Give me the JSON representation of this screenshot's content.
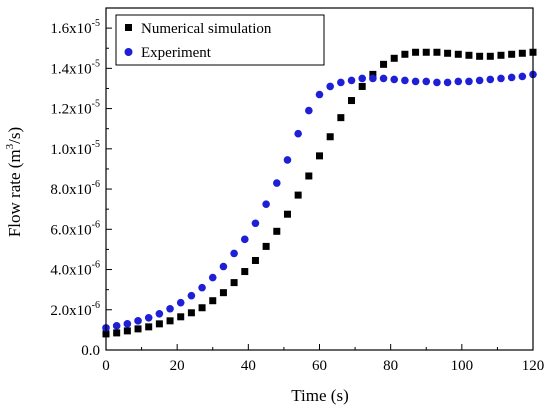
{
  "chart_data": {
    "type": "scatter",
    "xlabel": "Time (s)",
    "ylabel_main": "Flow rate (m",
    "ylabel_sup": "3",
    "ylabel_tail": "/s)",
    "xlim": [
      0,
      120
    ],
    "ylim": [
      0,
      1.7e-05
    ],
    "x_ticks": [
      {
        "value": 0,
        "label": "0"
      },
      {
        "value": 20,
        "label": "20"
      },
      {
        "value": 40,
        "label": "40"
      },
      {
        "value": 60,
        "label": "60"
      },
      {
        "value": 80,
        "label": "80"
      },
      {
        "value": 100,
        "label": "100"
      },
      {
        "value": 120,
        "label": "120"
      }
    ],
    "y_ticks": [
      {
        "value": 0,
        "mant": "0.0",
        "exp": ""
      },
      {
        "value": 2e-06,
        "mant": "2.0x10",
        "exp": "-6"
      },
      {
        "value": 4e-06,
        "mant": "4.0x10",
        "exp": "-6"
      },
      {
        "value": 6e-06,
        "mant": "6.0x10",
        "exp": "-6"
      },
      {
        "value": 8e-06,
        "mant": "8.0x10",
        "exp": "-6"
      },
      {
        "value": 1e-05,
        "mant": "1.0x10",
        "exp": "-5"
      },
      {
        "value": 1.2e-05,
        "mant": "1.2x10",
        "exp": "-5"
      },
      {
        "value": 1.4e-05,
        "mant": "1.4x10",
        "exp": "-5"
      },
      {
        "value": 1.6e-05,
        "mant": "1.6x10",
        "exp": "-5"
      }
    ],
    "legend_position": "top-left",
    "series": [
      {
        "name": "Numerical simulation",
        "marker": "square",
        "color": "#000000",
        "x": [
          0,
          3,
          6,
          9,
          12,
          15,
          18,
          21,
          24,
          27,
          30,
          33,
          36,
          39,
          42,
          45,
          48,
          51,
          54,
          57,
          60,
          63,
          66,
          69,
          72,
          75,
          78,
          81,
          84,
          87,
          90,
          93,
          96,
          99,
          102,
          105,
          108,
          111,
          114,
          117,
          120
        ],
        "y": [
          8e-07,
          8.5e-07,
          9.5e-07,
          1.05e-06,
          1.15e-06,
          1.3e-06,
          1.45e-06,
          1.65e-06,
          1.85e-06,
          2.1e-06,
          2.45e-06,
          2.85e-06,
          3.35e-06,
          3.9e-06,
          4.45e-06,
          5.15e-06,
          5.9e-06,
          6.75e-06,
          7.7e-06,
          8.65e-06,
          9.65e-06,
          1.06e-05,
          1.155e-05,
          1.24e-05,
          1.31e-05,
          1.37e-05,
          1.42e-05,
          1.45e-05,
          1.47e-05,
          1.48e-05,
          1.48e-05,
          1.48e-05,
          1.475e-05,
          1.47e-05,
          1.465e-05,
          1.46e-05,
          1.46e-05,
          1.465e-05,
          1.47e-05,
          1.475e-05,
          1.48e-05
        ]
      },
      {
        "name": "Experiment",
        "marker": "circle",
        "color": "#1f1fd6",
        "x": [
          0,
          3,
          6,
          9,
          12,
          15,
          18,
          21,
          24,
          27,
          30,
          33,
          36,
          39,
          42,
          45,
          48,
          51,
          54,
          57,
          60,
          63,
          66,
          69,
          72,
          75,
          78,
          81,
          84,
          87,
          90,
          93,
          96,
          99,
          102,
          105,
          108,
          111,
          114,
          117,
          120
        ],
        "y": [
          1.1e-06,
          1.2e-06,
          1.3e-06,
          1.45e-06,
          1.6e-06,
          1.8e-06,
          2.05e-06,
          2.35e-06,
          2.7e-06,
          3.1e-06,
          3.6e-06,
          4.15e-06,
          4.8e-06,
          5.5e-06,
          6.3e-06,
          7.25e-06,
          8.3e-06,
          9.45e-06,
          1.075e-05,
          1.19e-05,
          1.27e-05,
          1.31e-05,
          1.33e-05,
          1.34e-05,
          1.35e-05,
          1.35e-05,
          1.35e-05,
          1.345e-05,
          1.34e-05,
          1.335e-05,
          1.335e-05,
          1.33e-05,
          1.33e-05,
          1.335e-05,
          1.335e-05,
          1.34e-05,
          1.345e-05,
          1.35e-05,
          1.355e-05,
          1.36e-05,
          1.37e-05
        ]
      }
    ]
  }
}
